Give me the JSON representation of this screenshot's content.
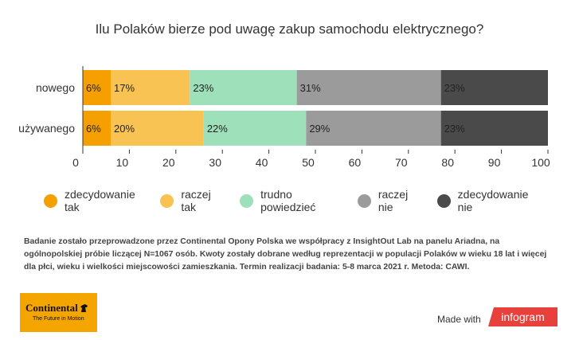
{
  "title": "Ilu Polaków bierze pod uwagę zakup samochodu elektrycznego?",
  "chart_data": {
    "type": "bar",
    "orientation": "horizontal",
    "stacked": true,
    "categories": [
      "nowego",
      "używanego"
    ],
    "series": [
      {
        "name": "zdecydowanie tak",
        "values": [
          6,
          6
        ],
        "color": "#f5a000"
      },
      {
        "name": "raczej tak",
        "values": [
          17,
          20
        ],
        "color": "#f9c353"
      },
      {
        "name": "trudno powiedzieć",
        "values": [
          23,
          22
        ],
        "color": "#9ee0ba"
      },
      {
        "name": "raczej nie",
        "values": [
          31,
          29
        ],
        "color": "#9b9b9b"
      },
      {
        "name": "zdecydowanie nie",
        "values": [
          23,
          23
        ],
        "color": "#4a4a4a"
      }
    ],
    "data_labels": [
      [
        "6%",
        "17%",
        "23%",
        "31%",
        "23%"
      ],
      [
        "6%",
        "20%",
        "22%",
        "29%",
        "23%"
      ]
    ],
    "xlim": [
      0,
      100
    ],
    "xticks": [
      "0",
      "10",
      "20",
      "30",
      "40",
      "50",
      "60",
      "70",
      "80",
      "90",
      "100"
    ],
    "legend_position": "bottom",
    "grid": false
  },
  "footnote": "Badanie zostało przeprowadzone przez Continental Opony Polska we współpracy z InsightOut Lab na panelu Ariadna, na ogólnopolskiej próbie liczącej N=1067 osób. Kwoty zostały dobrane według reprezentacji w populacji Polaków w wieku 18 lat i więcej dla płci, wieku i wielkości miejscowości zamieszkania. Termin realizacji badania:  5-8 marca 2021 r. Metoda: CAWI.",
  "logo": {
    "name": "Continental",
    "tagline": "The Future in Motion",
    "color": "#f5a500"
  },
  "made_with": "Made with",
  "infogram": "infogram"
}
